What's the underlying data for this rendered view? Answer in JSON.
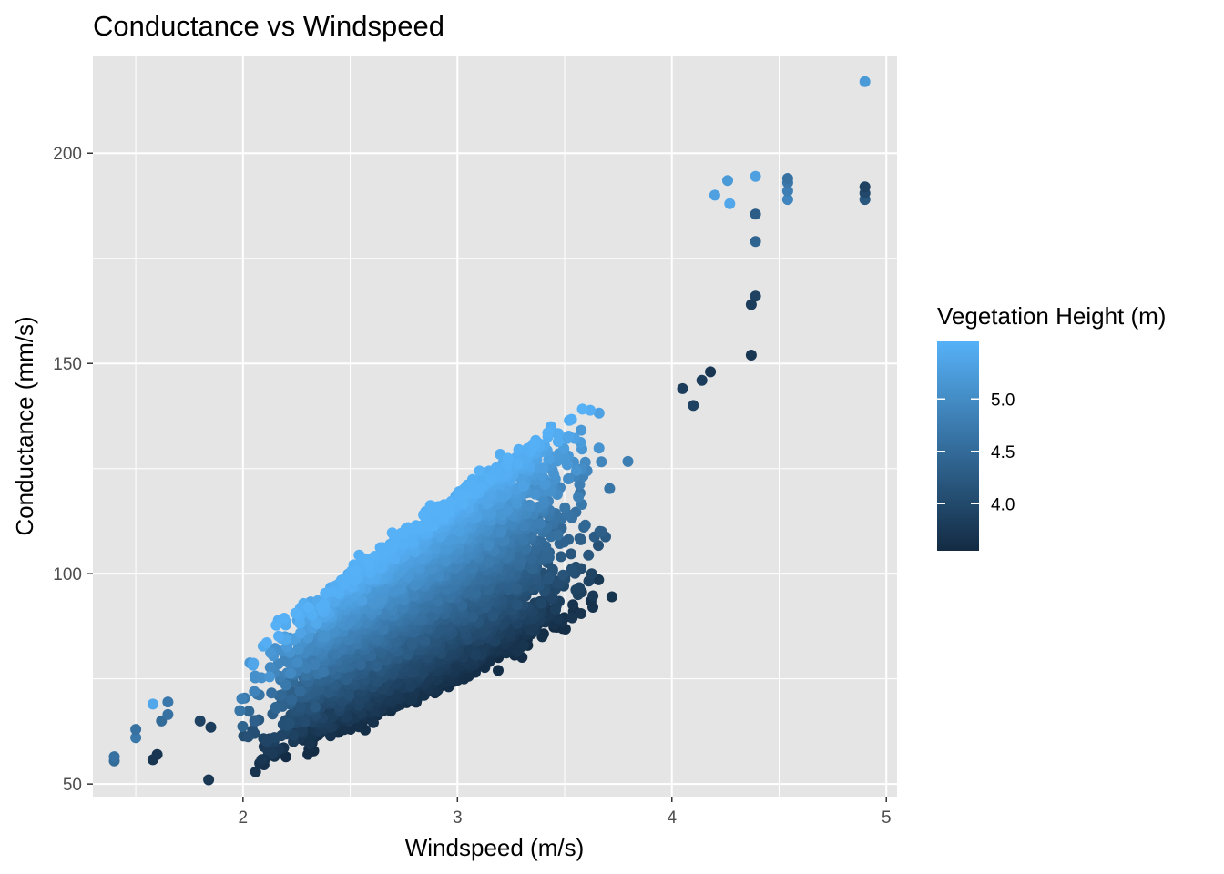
{
  "chart_data": {
    "type": "scatter",
    "title": "Conductance vs Windspeed",
    "xlabel": "Windspeed (m/s)",
    "ylabel": "Conductance (mm/s)",
    "xlim": [
      1.3,
      5.05
    ],
    "ylim": [
      47,
      223
    ],
    "x_major_ticks": [
      2,
      3,
      4,
      5
    ],
    "x_minor_ticks": [
      1.5,
      2.5,
      3.5,
      4.5
    ],
    "y_major_ticks": [
      50,
      100,
      150,
      200
    ],
    "y_minor_ticks": [
      75,
      125,
      175
    ],
    "grid": true,
    "panel_background": "#e5e5e5",
    "grid_color": "#ffffff",
    "color_scale": {
      "title": "Vegetation Height (m)",
      "low_color": "#132b43",
      "high_color": "#56b1f7",
      "range": [
        3.55,
        5.55
      ],
      "breaks": [
        4.0,
        4.5,
        5.0
      ],
      "break_labels": [
        "4.0",
        "4.5",
        "5.0"
      ],
      "legend_position": "right"
    },
    "point_cloud": {
      "description_points": 6500,
      "x_range": [
        1.4,
        4.9
      ],
      "trend": "conductance rises roughly linearly with windspeed; taller vegetation gives higher conductance at the same windspeed"
    },
    "points": [
      {
        "x": 1.4,
        "y": 55.5,
        "h": 4.5
      },
      {
        "x": 1.4,
        "y": 56.5,
        "h": 4.6
      },
      {
        "x": 1.5,
        "y": 61,
        "h": 4.7
      },
      {
        "x": 1.5,
        "y": 63,
        "h": 4.6
      },
      {
        "x": 1.58,
        "y": 55.8,
        "h": 3.7
      },
      {
        "x": 1.6,
        "y": 57,
        "h": 3.7
      },
      {
        "x": 1.58,
        "y": 69,
        "h": 5.4
      },
      {
        "x": 1.65,
        "y": 69.5,
        "h": 4.7
      },
      {
        "x": 1.62,
        "y": 65,
        "h": 4.5
      },
      {
        "x": 1.65,
        "y": 66.5,
        "h": 4.6
      },
      {
        "x": 1.85,
        "y": 63.5,
        "h": 3.8
      },
      {
        "x": 1.8,
        "y": 65,
        "h": 3.9
      },
      {
        "x": 4.9,
        "y": 217,
        "h": 5.2
      },
      {
        "x": 4.9,
        "y": 189,
        "h": 4.2
      },
      {
        "x": 4.9,
        "y": 190.5,
        "h": 4.0
      },
      {
        "x": 4.9,
        "y": 192,
        "h": 3.9
      },
      {
        "x": 4.54,
        "y": 189,
        "h": 4.9
      },
      {
        "x": 4.54,
        "y": 191,
        "h": 4.8
      },
      {
        "x": 4.54,
        "y": 193,
        "h": 4.7
      },
      {
        "x": 4.54,
        "y": 194,
        "h": 4.6
      },
      {
        "x": 4.39,
        "y": 194.5,
        "h": 5.3
      },
      {
        "x": 4.39,
        "y": 185.5,
        "h": 4.3
      },
      {
        "x": 4.39,
        "y": 179,
        "h": 4.4
      },
      {
        "x": 4.39,
        "y": 166,
        "h": 3.9
      },
      {
        "x": 4.37,
        "y": 164,
        "h": 3.8
      },
      {
        "x": 4.37,
        "y": 152,
        "h": 3.7
      },
      {
        "x": 4.26,
        "y": 193.5,
        "h": 5.2
      },
      {
        "x": 4.27,
        "y": 188,
        "h": 5.4
      },
      {
        "x": 4.2,
        "y": 190,
        "h": 5.3
      },
      {
        "x": 4.14,
        "y": 146,
        "h": 3.8
      },
      {
        "x": 4.18,
        "y": 148,
        "h": 3.7
      },
      {
        "x": 4.1,
        "y": 140,
        "h": 3.9
      },
      {
        "x": 4.05,
        "y": 144,
        "h": 3.8
      }
    ]
  }
}
